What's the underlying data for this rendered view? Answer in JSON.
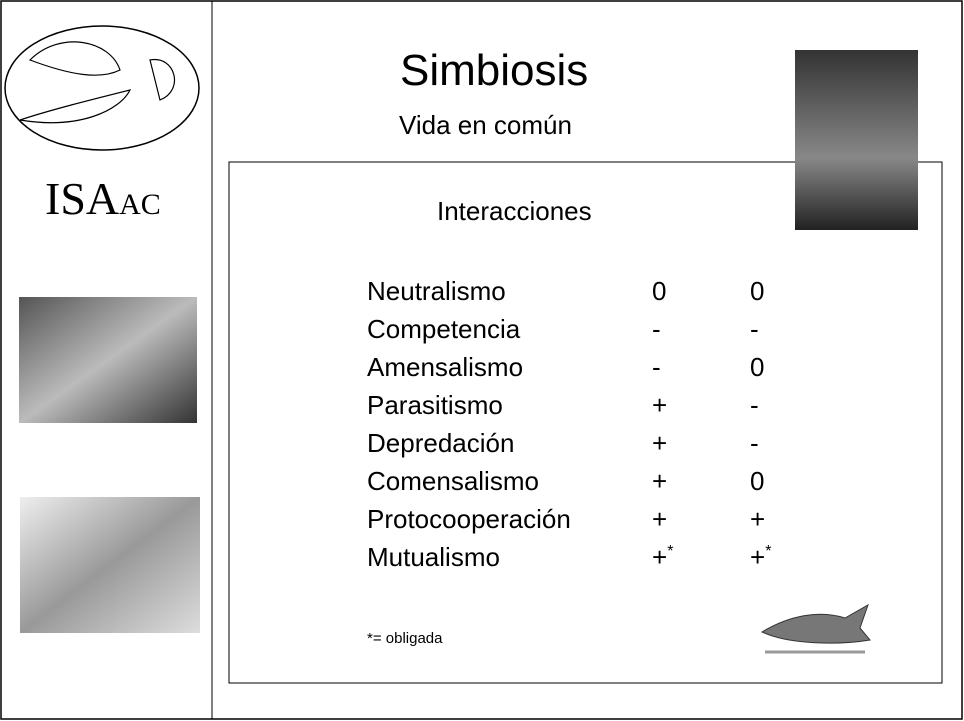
{
  "title": "Simbiosis",
  "subtitle": "Vida en común",
  "logo": {
    "large": "ISA",
    "small": "AC"
  },
  "heading": "Interacciones",
  "table": {
    "rows": [
      [
        "Neutralismo",
        "0",
        "0"
      ],
      [
        "Competencia",
        "-",
        "-"
      ],
      [
        "Amensalismo",
        "-",
        "0"
      ],
      [
        "Parasitismo",
        "+",
        "-"
      ],
      [
        "Depredación",
        "+",
        "-"
      ],
      [
        "Comensalismo",
        "+",
        "0"
      ],
      [
        "Protocooperación",
        "+",
        "+"
      ],
      [
        "Mutualismo",
        {
          "text": "+",
          "sup": "*"
        },
        {
          "text": "+",
          "sup": "*"
        }
      ]
    ]
  },
  "footnote": "*= obligada"
}
